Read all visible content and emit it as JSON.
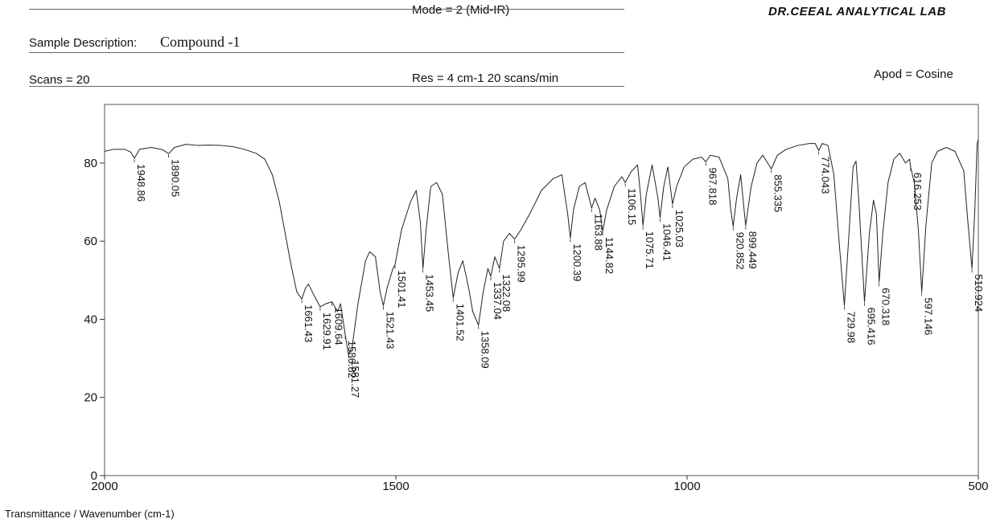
{
  "header": {
    "mode": "Mode = 2 (Mid-IR)",
    "lab": "DR.CEEAL ANALYTICAL LAB",
    "sample_label": "Sample Description:",
    "sample_value": "Compound -1",
    "scans": "Scans = 20",
    "res": "Res = 4 cm-1   20 scans/min",
    "apod": "Apod = Cosine"
  },
  "footer": {
    "xlabel": "Transmittance / Wavenumber (cm-1)"
  },
  "chart_data": {
    "type": "line",
    "title": "",
    "xlabel": "Transmittance / Wavenumber (cm-1)",
    "ylabel": "",
    "xlim": [
      2000,
      500
    ],
    "ylim": [
      0,
      95
    ],
    "x_ticks": [
      2000,
      1500,
      1000,
      500
    ],
    "y_ticks": [
      0,
      20,
      40,
      60,
      80
    ],
    "grid": false,
    "series": [
      {
        "points": [
          [
            2000,
            83
          ],
          [
            1985,
            83.5
          ],
          [
            1965,
            83.5
          ],
          [
            1955,
            82.8
          ],
          [
            1948.86,
            81.2
          ],
          [
            1940,
            83.5
          ],
          [
            1920,
            84
          ],
          [
            1900,
            83.4
          ],
          [
            1890.05,
            82.4
          ],
          [
            1880,
            84
          ],
          [
            1860,
            84.8
          ],
          [
            1840,
            84.5
          ],
          [
            1820,
            84.6
          ],
          [
            1800,
            84.5
          ],
          [
            1780,
            84.2
          ],
          [
            1760,
            83.5
          ],
          [
            1740,
            82.5
          ],
          [
            1725,
            81
          ],
          [
            1712,
            77
          ],
          [
            1700,
            70
          ],
          [
            1690,
            62
          ],
          [
            1680,
            54
          ],
          [
            1670,
            47
          ],
          [
            1661.43,
            45.2
          ],
          [
            1655,
            48
          ],
          [
            1650,
            49
          ],
          [
            1640,
            46
          ],
          [
            1629.91,
            43.2
          ],
          [
            1620,
            44
          ],
          [
            1609.64,
            44.5
          ],
          [
            1600,
            42
          ],
          [
            1595,
            44
          ],
          [
            1586.82,
            36
          ],
          [
            1581.27,
            31
          ],
          [
            1575,
            33
          ],
          [
            1565,
            44
          ],
          [
            1552,
            55
          ],
          [
            1545,
            57.3
          ],
          [
            1535,
            56
          ],
          [
            1527,
            47
          ],
          [
            1521.43,
            43.5
          ],
          [
            1515,
            48
          ],
          [
            1505,
            53
          ],
          [
            1501.41,
            54
          ],
          [
            1490,
            63
          ],
          [
            1475,
            70
          ],
          [
            1465,
            73
          ],
          [
            1458,
            65
          ],
          [
            1453.45,
            53
          ],
          [
            1448,
            63
          ],
          [
            1440,
            74
          ],
          [
            1430,
            75
          ],
          [
            1420,
            72
          ],
          [
            1410,
            57
          ],
          [
            1401.52,
            45.5
          ],
          [
            1393,
            52
          ],
          [
            1385,
            55
          ],
          [
            1375,
            48
          ],
          [
            1368,
            42
          ],
          [
            1358.09,
            38.5
          ],
          [
            1350,
            47
          ],
          [
            1342,
            53
          ],
          [
            1337.04,
            51
          ],
          [
            1330,
            56
          ],
          [
            1322.08,
            53
          ],
          [
            1315,
            60
          ],
          [
            1305,
            62
          ],
          [
            1295.99,
            60.5
          ],
          [
            1285,
            63
          ],
          [
            1270,
            67
          ],
          [
            1250,
            73
          ],
          [
            1230,
            76
          ],
          [
            1215,
            77
          ],
          [
            1205,
            67
          ],
          [
            1200.39,
            60.8
          ],
          [
            1195,
            68
          ],
          [
            1185,
            74
          ],
          [
            1175,
            75
          ],
          [
            1168,
            71
          ],
          [
            1163.88,
            68.5
          ],
          [
            1158,
            71
          ],
          [
            1150,
            68
          ],
          [
            1144.82,
            62.5
          ],
          [
            1138,
            68
          ],
          [
            1125,
            74
          ],
          [
            1112,
            76.5
          ],
          [
            1106.15,
            75
          ],
          [
            1095,
            78
          ],
          [
            1085,
            79.5
          ],
          [
            1080,
            72
          ],
          [
            1075.71,
            64
          ],
          [
            1070,
            72
          ],
          [
            1060,
            79.5
          ],
          [
            1050,
            71
          ],
          [
            1046.41,
            66
          ],
          [
            1040,
            74
          ],
          [
            1033,
            79
          ],
          [
            1025.03,
            69.5
          ],
          [
            1018,
            74
          ],
          [
            1005,
            79
          ],
          [
            990,
            81
          ],
          [
            975,
            81.5
          ],
          [
            967.818,
            80.3
          ],
          [
            960,
            82
          ],
          [
            945,
            81.5
          ],
          [
            930,
            76
          ],
          [
            925,
            68
          ],
          [
            920.852,
            63.8
          ],
          [
            915,
            71
          ],
          [
            908,
            77
          ],
          [
            899.449,
            64
          ],
          [
            890,
            74
          ],
          [
            880,
            80
          ],
          [
            870,
            82
          ],
          [
            855.335,
            78.5
          ],
          [
            845,
            82
          ],
          [
            830,
            83.5
          ],
          [
            810,
            84.5
          ],
          [
            790,
            85
          ],
          [
            780,
            85
          ],
          [
            774.043,
            83.2
          ],
          [
            768,
            85
          ],
          [
            758,
            84.5
          ],
          [
            748,
            77
          ],
          [
            738,
            58
          ],
          [
            729.98,
            43.5
          ],
          [
            722,
            62
          ],
          [
            715,
            79
          ],
          [
            710,
            80.5
          ],
          [
            705,
            70
          ],
          [
            695.416,
            44.5
          ],
          [
            687,
            62
          ],
          [
            680,
            70.5
          ],
          [
            675,
            67
          ],
          [
            670.318,
            49.5
          ],
          [
            664,
            62
          ],
          [
            655,
            75
          ],
          [
            645,
            81
          ],
          [
            635,
            82.5
          ],
          [
            625,
            80
          ],
          [
            618,
            81
          ],
          [
            616.253,
            79
          ],
          [
            610,
            75
          ],
          [
            603,
            63
          ],
          [
            597.146,
            47
          ],
          [
            590,
            64
          ],
          [
            580,
            80
          ],
          [
            570,
            83
          ],
          [
            555,
            84
          ],
          [
            540,
            83
          ],
          [
            525,
            78
          ],
          [
            518,
            65
          ],
          [
            510.924,
            53
          ],
          [
            506,
            68
          ],
          [
            502,
            85
          ],
          [
            500,
            86
          ]
        ]
      }
    ],
    "peaks": [
      {
        "x": 1948.86,
        "y": 81.2,
        "label": "1948.86"
      },
      {
        "x": 1890.05,
        "y": 82.4,
        "label": "1890.05"
      },
      {
        "x": 1661.43,
        "y": 45.2,
        "label": "1661.43"
      },
      {
        "x": 1629.91,
        "y": 43.2,
        "label": "1629.91"
      },
      {
        "x": 1609.64,
        "y": 44.5,
        "label": "1609.64"
      },
      {
        "x": 1586.82,
        "y": 36,
        "label": "1586.82"
      },
      {
        "x": 1581.27,
        "y": 31,
        "label": "1581.27"
      },
      {
        "x": 1521.43,
        "y": 43.5,
        "label": "1521.43"
      },
      {
        "x": 1501.41,
        "y": 54,
        "label": "1501.41"
      },
      {
        "x": 1453.45,
        "y": 53,
        "label": "1453.45"
      },
      {
        "x": 1401.52,
        "y": 45.5,
        "label": "1401.52"
      },
      {
        "x": 1358.09,
        "y": 38.5,
        "label": "1358.09"
      },
      {
        "x": 1337.04,
        "y": 51,
        "label": "1337.04"
      },
      {
        "x": 1322.08,
        "y": 53,
        "label": "1322.08"
      },
      {
        "x": 1295.99,
        "y": 60.5,
        "label": "1295.99"
      },
      {
        "x": 1200.39,
        "y": 60.8,
        "label": "1200.39"
      },
      {
        "x": 1163.88,
        "y": 68.5,
        "label": "1163.88"
      },
      {
        "x": 1144.82,
        "y": 62.5,
        "label": "1144.82"
      },
      {
        "x": 1106.15,
        "y": 75,
        "label": "1106.15"
      },
      {
        "x": 1075.71,
        "y": 64,
        "label": "1075.71"
      },
      {
        "x": 1046.41,
        "y": 66,
        "label": "1046.41"
      },
      {
        "x": 1025.03,
        "y": 69.5,
        "label": "1025.03"
      },
      {
        "x": 967.818,
        "y": 80.3,
        "label": "967.818"
      },
      {
        "x": 920.852,
        "y": 63.8,
        "label": "920.852"
      },
      {
        "x": 899.449,
        "y": 64,
        "label": "899.449"
      },
      {
        "x": 855.335,
        "y": 78.5,
        "label": "855.335"
      },
      {
        "x": 774.043,
        "y": 83.2,
        "label": "774.043"
      },
      {
        "x": 729.98,
        "y": 43.5,
        "label": "729.98"
      },
      {
        "x": 695.416,
        "y": 44.5,
        "label": "695.416"
      },
      {
        "x": 670.318,
        "y": 49.5,
        "label": "670.318"
      },
      {
        "x": 616.253,
        "y": 79,
        "label": "616.253"
      },
      {
        "x": 597.146,
        "y": 47,
        "label": "597.146"
      },
      {
        "x": 510.924,
        "y": 53,
        "label": "510.924"
      }
    ]
  }
}
